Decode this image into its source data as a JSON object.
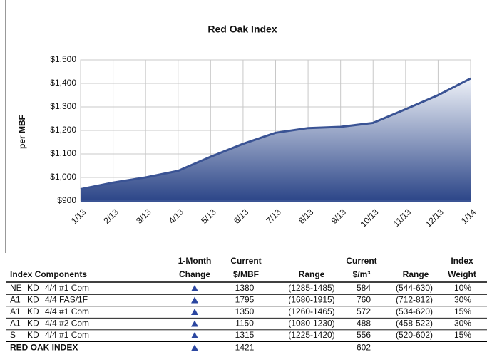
{
  "chart_data": {
    "type": "area",
    "title": "Red Oak Index",
    "y_label": "per MBF",
    "categories": [
      "1/13",
      "2/13",
      "3/13",
      "4/13",
      "5/13",
      "6/13",
      "7/13",
      "8/13",
      "9/13",
      "10/13",
      "11/13",
      "12/13",
      "1/14"
    ],
    "values": [
      950,
      978,
      1000,
      1028,
      1088,
      1143,
      1190,
      1210,
      1215,
      1232,
      1290,
      1350,
      1421
    ],
    "color": "#3a5394",
    "ylim": [
      900,
      1500
    ],
    "yticks": [
      {
        "value": 900,
        "label": "$900"
      },
      {
        "value": 1000,
        "label": "$1,000"
      },
      {
        "value": 1100,
        "label": "$1,100"
      },
      {
        "value": 1200,
        "label": "$1,200"
      },
      {
        "value": 1300,
        "label": "$1,300"
      },
      {
        "value": 1400,
        "label": "$1,400"
      },
      {
        "value": 1500,
        "label": "$1,500"
      }
    ],
    "grid": true
  },
  "table": {
    "header": [
      [
        "Index Components"
      ],
      [
        "1-Month",
        "Change"
      ],
      [
        "Current",
        "$/MBF"
      ],
      [
        "Range"
      ],
      [
        "Current",
        "$/m³"
      ],
      [
        "Range"
      ],
      [
        "Index",
        "Weight"
      ]
    ],
    "rows": [
      [
        "NE",
        "KD",
        "4/4 #1 Com",
        "1380",
        "(1285-1485)",
        "584",
        "(544-630)",
        "10%"
      ],
      [
        "A1",
        "KD",
        "4/4 FAS/1F",
        "1795",
        "(1680-1915)",
        "760",
        "(712-812)",
        "30%"
      ],
      [
        "A1",
        "KD",
        "4/4 #1 Com",
        "1350",
        "(1260-1465)",
        "572",
        "(534-620)",
        "15%"
      ],
      [
        "A1",
        "KD",
        "4/4 #2 Com",
        "1150",
        "(1080-1230)",
        "488",
        "(458-522)",
        "30%"
      ],
      [
        "S",
        "KD",
        "4/4 #1 Com",
        "1315",
        "(1225-1420)",
        "556",
        "(520-602)",
        "15%"
      ]
    ],
    "total": {
      "label": "RED OAK INDEX",
      "mbf": "1421",
      "m3": "602"
    }
  }
}
